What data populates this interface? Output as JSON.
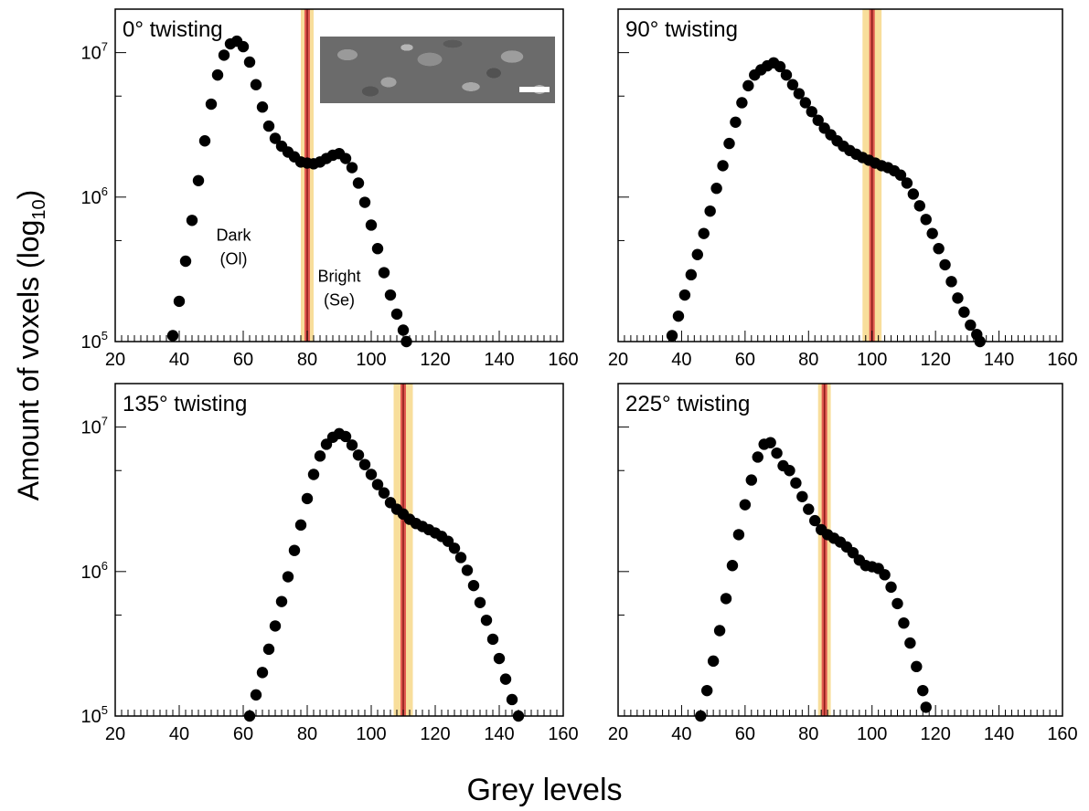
{
  "figure": {
    "ylabel_main": "Amount of voxels (log",
    "ylabel_sub": "10",
    "ylabel_close": ")",
    "xlabel": "Grey levels"
  },
  "chart_data": [
    {
      "type": "scatter",
      "title": "0° twisting",
      "xlim": [
        20,
        160
      ],
      "ylim": [
        100000,
        20000000
      ],
      "log_y": true,
      "x_ticks": [
        "20",
        "40",
        "60",
        "80",
        "100",
        "120",
        "140",
        "160"
      ],
      "y_ticks": [
        {
          "base": "10",
          "exp": "5"
        },
        {
          "base": "10",
          "exp": "6"
        },
        {
          "base": "10",
          "exp": "7"
        }
      ],
      "threshold": 80,
      "threshold_band": [
        78,
        82
      ],
      "annotations": [
        {
          "lines": [
            "Dark",
            "(Ol)"
          ],
          "x": 57,
          "y": 500000
        },
        {
          "lines": [
            "Bright",
            "(Se)"
          ],
          "x": 90,
          "y": 260000
        }
      ],
      "x": [
        38,
        40,
        42,
        44,
        46,
        48,
        50,
        52,
        54,
        56,
        58,
        60,
        62,
        64,
        66,
        68,
        70,
        72,
        74,
        76,
        78,
        80,
        82,
        84,
        86,
        88,
        90,
        92,
        94,
        96,
        98,
        100,
        102,
        104,
        106,
        108,
        110,
        111
      ],
      "y": [
        110000,
        190000,
        360000,
        690000,
        1300000,
        2450000,
        4400000,
        7000000,
        9600000,
        11500000,
        12000000,
        11000000,
        8600000,
        6000000,
        4200000,
        3100000,
        2550000,
        2250000,
        2050000,
        1900000,
        1750000,
        1720000,
        1700000,
        1750000,
        1850000,
        1950000,
        2000000,
        1850000,
        1600000,
        1250000,
        920000,
        640000,
        440000,
        300000,
        210000,
        155000,
        120000,
        100000
      ]
    },
    {
      "type": "scatter",
      "title": "90° twisting",
      "xlim": [
        20,
        160
      ],
      "ylim": [
        100000,
        20000000
      ],
      "log_y": true,
      "x_ticks": [
        "20",
        "40",
        "60",
        "80",
        "100",
        "120",
        "140",
        "160"
      ],
      "y_ticks": [
        {
          "base": "",
          "exp": ""
        },
        {
          "base": "",
          "exp": ""
        },
        {
          "base": "",
          "exp": ""
        }
      ],
      "threshold": 100,
      "threshold_band": [
        97,
        103
      ],
      "annotations": [],
      "x": [
        37,
        39,
        41,
        43,
        45,
        47,
        49,
        51,
        53,
        55,
        57,
        59,
        61,
        63,
        65,
        67,
        69,
        71,
        73,
        75,
        77,
        79,
        81,
        83,
        85,
        87,
        89,
        91,
        93,
        95,
        97,
        99,
        101,
        103,
        105,
        107,
        109,
        111,
        113,
        115,
        117,
        119,
        121,
        123,
        125,
        127,
        129,
        131,
        133,
        134
      ],
      "y": [
        110000,
        150000,
        210000,
        290000,
        400000,
        560000,
        800000,
        1150000,
        1650000,
        2350000,
        3300000,
        4500000,
        5900000,
        7000000,
        7600000,
        8100000,
        8500000,
        8000000,
        7000000,
        6000000,
        5200000,
        4500000,
        3900000,
        3400000,
        3000000,
        2700000,
        2450000,
        2250000,
        2100000,
        1980000,
        1880000,
        1800000,
        1720000,
        1650000,
        1600000,
        1520000,
        1420000,
        1250000,
        1050000,
        870000,
        700000,
        560000,
        440000,
        340000,
        260000,
        200000,
        160000,
        130000,
        112000,
        100000
      ]
    },
    {
      "type": "scatter",
      "title": "135° twisting",
      "xlim": [
        20,
        160
      ],
      "ylim": [
        100000,
        20000000
      ],
      "log_y": true,
      "x_ticks": [
        "20",
        "40",
        "60",
        "80",
        "100",
        "120",
        "140",
        "160"
      ],
      "y_ticks": [
        {
          "base": "10",
          "exp": "5"
        },
        {
          "base": "10",
          "exp": "6"
        },
        {
          "base": "10",
          "exp": "7"
        }
      ],
      "threshold": 110,
      "threshold_band": [
        107,
        113
      ],
      "annotations": [],
      "x": [
        62,
        64,
        66,
        68,
        70,
        72,
        74,
        76,
        78,
        80,
        82,
        84,
        86,
        88,
        90,
        92,
        94,
        96,
        98,
        100,
        102,
        104,
        106,
        108,
        110,
        112,
        114,
        116,
        118,
        120,
        122,
        124,
        126,
        128,
        130,
        132,
        134,
        136,
        138,
        140,
        142,
        144,
        146
      ],
      "y": [
        100000,
        140000,
        200000,
        290000,
        420000,
        620000,
        920000,
        1400000,
        2100000,
        3200000,
        4700000,
        6300000,
        7600000,
        8500000,
        9000000,
        8600000,
        7500000,
        6400000,
        5500000,
        4700000,
        4000000,
        3500000,
        3000000,
        2700000,
        2500000,
        2300000,
        2150000,
        2050000,
        1950000,
        1850000,
        1750000,
        1620000,
        1450000,
        1250000,
        1020000,
        800000,
        610000,
        460000,
        340000,
        250000,
        180000,
        130000,
        100000
      ]
    },
    {
      "type": "scatter",
      "title": "225° twisting",
      "xlim": [
        20,
        160
      ],
      "ylim": [
        100000,
        20000000
      ],
      "log_y": true,
      "x_ticks": [
        "20",
        "40",
        "60",
        "80",
        "100",
        "120",
        "140",
        "160"
      ],
      "y_ticks": [
        {
          "base": "",
          "exp": ""
        },
        {
          "base": "",
          "exp": ""
        },
        {
          "base": "",
          "exp": ""
        }
      ],
      "threshold": 85,
      "threshold_band": [
        83,
        87
      ],
      "annotations": [],
      "x": [
        46,
        48,
        50,
        52,
        54,
        56,
        58,
        60,
        62,
        64,
        66,
        68,
        70,
        72,
        74,
        76,
        78,
        80,
        82,
        84,
        86,
        88,
        90,
        92,
        94,
        96,
        98,
        100,
        102,
        104,
        106,
        108,
        110,
        112,
        114,
        116,
        117
      ],
      "y": [
        100000,
        150000,
        240000,
        390000,
        650000,
        1100000,
        1800000,
        2900000,
        4300000,
        6200000,
        7600000,
        7800000,
        6600000,
        5400000,
        5000000,
        4100000,
        3300000,
        2700000,
        2250000,
        1950000,
        1800000,
        1700000,
        1600000,
        1480000,
        1350000,
        1200000,
        1100000,
        1080000,
        1050000,
        950000,
        780000,
        600000,
        440000,
        320000,
        220000,
        150000,
        115000
      ]
    }
  ]
}
